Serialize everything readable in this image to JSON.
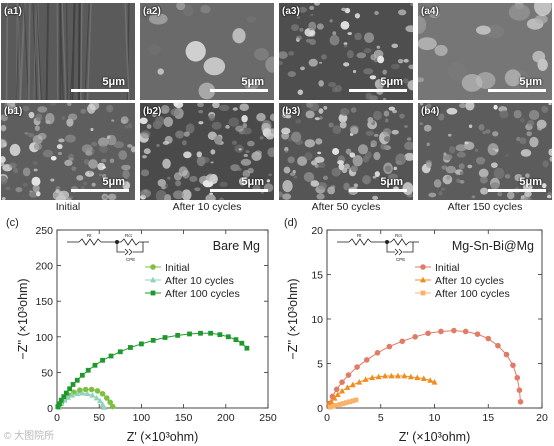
{
  "sem_rows": [
    {
      "tiles": [
        {
          "label": "(a1)",
          "scale": "5μm"
        },
        {
          "label": "(a2)",
          "scale": "5μm"
        },
        {
          "label": "(a3)",
          "scale": "5μm"
        },
        {
          "label": "(a4)",
          "scale": "5μm"
        }
      ]
    },
    {
      "tiles": [
        {
          "label": "(b1)",
          "scale": "5μm"
        },
        {
          "label": "(b2)",
          "scale": "5μm"
        },
        {
          "label": "(b3)",
          "scale": "5μm"
        },
        {
          "label": "(b4)",
          "scale": "5μm"
        }
      ]
    }
  ],
  "column_captions": [
    "Initial",
    "After 10 cycles",
    "After 50 cycles",
    "After 150 cycles"
  ],
  "watermark": "© 大图院所",
  "colors": {
    "bare_initial": "#7fbf3f",
    "bare_10": "#8fd4b8",
    "bare_100": "#1e9a2c",
    "alloy_initial": "#e07b66",
    "alloy_10": "#f28c1e",
    "alloy_100": "#f7b36a"
  },
  "chart_data": [
    {
      "type": "scatter",
      "panel_label": "(c)",
      "title": "Bare Mg",
      "xlabel": "Z' (×10³ohm)",
      "ylabel": "−Z'' (×10³ohm)",
      "xlim": [
        0,
        250
      ],
      "ylim": [
        0,
        250
      ],
      "xticks": [
        0,
        50,
        100,
        150,
        200,
        250
      ],
      "yticks": [
        0,
        50,
        100,
        150,
        200,
        250
      ],
      "legend_position": "top-right",
      "circuit_labels": [
        "Rt",
        "Rct",
        "CPE"
      ],
      "series": [
        {
          "name": "Initial",
          "marker": "circle",
          "color_key": "bare_initial",
          "x": [
            2,
            5,
            9,
            14,
            20,
            27,
            34,
            41,
            48,
            54,
            59,
            63,
            66
          ],
          "y": [
            1,
            7,
            13,
            18,
            22,
            25,
            26,
            26,
            24,
            20,
            14,
            8,
            2
          ]
        },
        {
          "name": "After 10 cycles",
          "marker": "triangle",
          "color_key": "bare_10",
          "x": [
            2,
            5,
            9,
            13,
            18,
            24,
            30,
            36,
            42,
            47,
            51,
            54,
            56
          ],
          "y": [
            1,
            6,
            11,
            15,
            18,
            20,
            21,
            20,
            18,
            14,
            10,
            5,
            1
          ]
        },
        {
          "name": "After 100 cycles",
          "marker": "square",
          "color_key": "bare_100",
          "x": [
            1,
            3,
            5,
            8,
            11,
            15,
            19,
            24,
            30,
            37,
            45,
            54,
            64,
            75,
            87,
            100,
            114,
            128,
            143,
            157,
            170,
            182,
            193,
            203,
            212,
            219,
            225
          ],
          "y": [
            2,
            6,
            11,
            16,
            21,
            27,
            33,
            39,
            46,
            53,
            60,
            67,
            73,
            79,
            85,
            90,
            95,
            99,
            102,
            104,
            105,
            105,
            103,
            100,
            96,
            91,
            84
          ]
        }
      ]
    },
    {
      "type": "scatter",
      "panel_label": "(d)",
      "title": "Mg-Sn-Bi@Mg",
      "xlabel": "Z' (×10³ohm)",
      "ylabel": "−Z'' (×10³ohm)",
      "xlim": [
        0,
        20
      ],
      "ylim": [
        0,
        20
      ],
      "xticks": [
        0,
        5,
        10,
        15,
        20
      ],
      "yticks": [
        0,
        5,
        10,
        15,
        20
      ],
      "legend_position": "top-right",
      "circuit_labels": [
        "Rt",
        "Rct",
        "CPE"
      ],
      "series": [
        {
          "name": "Initial",
          "marker": "circle",
          "color_key": "alloy_initial",
          "x": [
            0.2,
            0.5,
            0.9,
            1.4,
            2.0,
            2.8,
            3.7,
            4.7,
            5.8,
            7.0,
            8.2,
            9.4,
            10.6,
            11.8,
            12.9,
            14.0,
            15.0,
            15.9,
            16.7,
            17.3,
            17.7,
            17.9,
            18.0
          ],
          "y": [
            0.5,
            1.3,
            2.1,
            2.9,
            3.7,
            4.6,
            5.4,
            6.2,
            6.9,
            7.5,
            8.0,
            8.4,
            8.6,
            8.7,
            8.6,
            8.3,
            7.8,
            7.0,
            6.0,
            4.8,
            3.4,
            2.0,
            0.7
          ]
        },
        {
          "name": "After 10 cycles",
          "marker": "triangle",
          "color_key": "alloy_10",
          "x": [
            0.2,
            0.4,
            0.7,
            1.0,
            1.4,
            1.9,
            2.4,
            3.0,
            3.6,
            4.2,
            4.8,
            5.4,
            6.0,
            6.6,
            7.2,
            7.8,
            8.4,
            9.0,
            9.6,
            10.0
          ],
          "y": [
            0.3,
            0.7,
            1.1,
            1.5,
            1.9,
            2.3,
            2.6,
            2.9,
            3.2,
            3.4,
            3.5,
            3.6,
            3.6,
            3.6,
            3.6,
            3.5,
            3.4,
            3.3,
            3.1,
            2.9
          ]
        },
        {
          "name": "After 100 cycles",
          "marker": "square",
          "color_key": "alloy_100",
          "x": [
            0.3,
            0.6,
            0.9,
            1.2,
            1.5,
            1.8,
            2.1,
            2.4,
            2.7
          ],
          "y": [
            0.1,
            0.2,
            0.3,
            0.4,
            0.5,
            0.6,
            0.7,
            0.8,
            0.9
          ]
        }
      ]
    }
  ]
}
